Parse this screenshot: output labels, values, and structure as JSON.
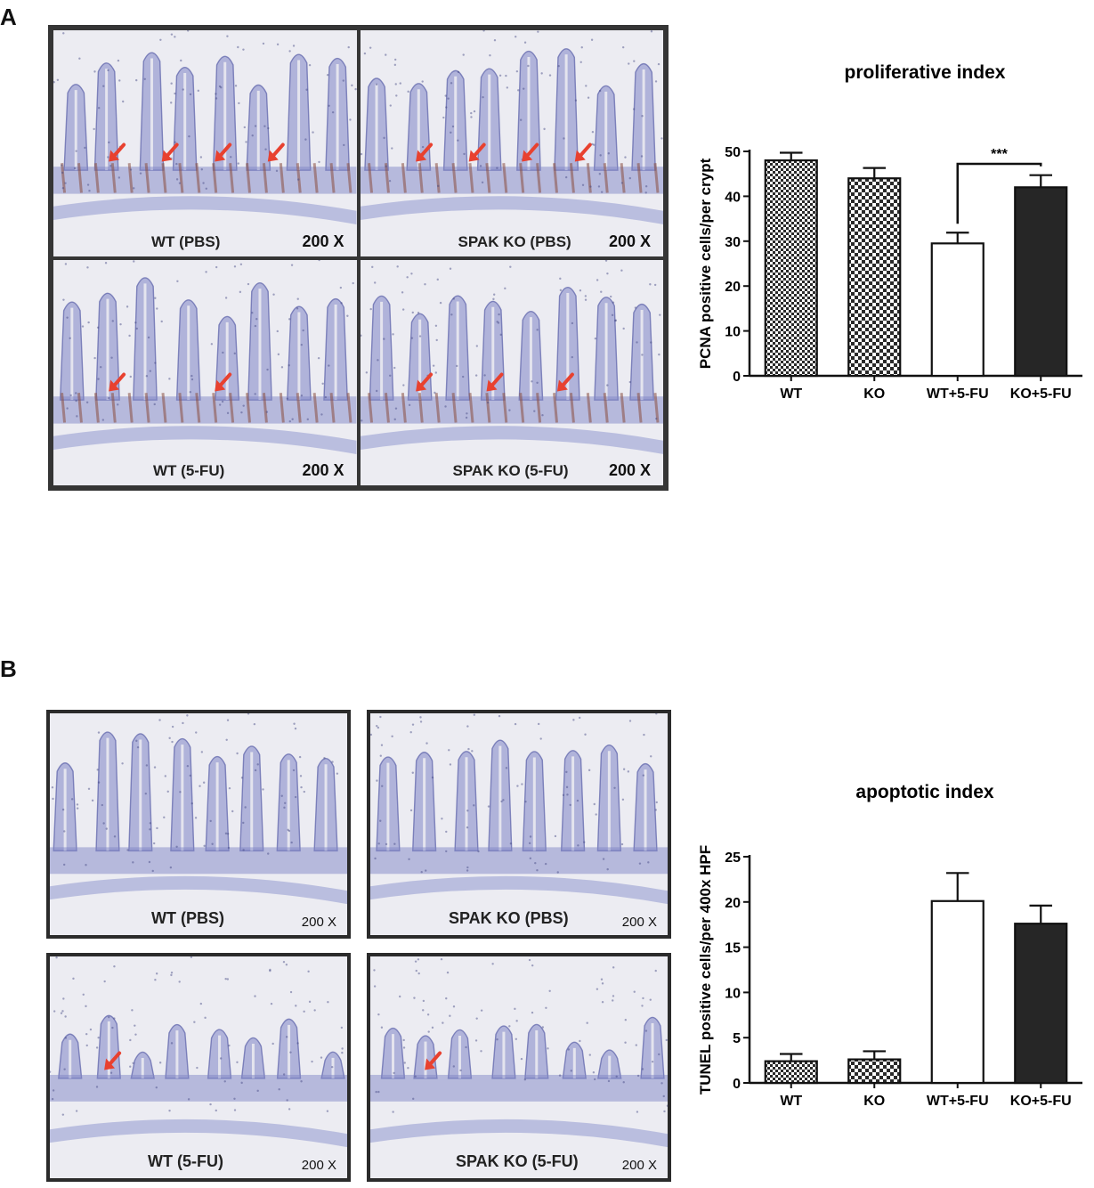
{
  "panels": [
    {
      "letter": "A",
      "images": [
        {
          "label": "WT (PBS)",
          "magnification": "200 X",
          "arrows": 4
        },
        {
          "label": "SPAK KO (PBS)",
          "magnification": "200 X",
          "arrows": 4
        },
        {
          "label": "WT (5-FU)",
          "magnification": "200 X",
          "arrows": 2
        },
        {
          "label": "SPAK KO (5-FU)",
          "magnification": "200 X",
          "arrows": 3
        }
      ]
    },
    {
      "letter": "B",
      "images": [
        {
          "label": "WT (PBS)",
          "magnification": "200 X",
          "arrows": 0
        },
        {
          "label": "SPAK KO (PBS)",
          "magnification": "200 X",
          "arrows": 0
        },
        {
          "label": "WT (5-FU)",
          "magnification": "200 X",
          "arrows": 1
        },
        {
          "label": "SPAK KO (5-FU)",
          "magnification": "200 X",
          "arrows": 1
        }
      ]
    }
  ],
  "chart_data": [
    {
      "type": "bar",
      "title": "proliferative index",
      "ylabel": "PCNA positive cells/per crypt",
      "xlabel": "",
      "categories": [
        "WT",
        "KO",
        "WT+5-FU",
        "KO+5-FU"
      ],
      "values": [
        48,
        44,
        29.5,
        42
      ],
      "errors": [
        1.7,
        2.3,
        2.4,
        2.7
      ],
      "ylim": [
        0,
        50
      ],
      "yticks": [
        0,
        10,
        20,
        30,
        40,
        50
      ],
      "fills": [
        "checker-fine",
        "checker-coarse",
        "white",
        "black"
      ],
      "significance": {
        "from": 2,
        "to": 3,
        "label": "***"
      }
    },
    {
      "type": "bar",
      "title": "apoptotic index",
      "ylabel": "TUNEL positive cells/per 400x HPF",
      "xlabel": "",
      "categories": [
        "WT",
        "KO",
        "WT+5-FU",
        "KO+5-FU"
      ],
      "values": [
        2.4,
        2.6,
        20.1,
        17.6
      ],
      "errors": [
        0.8,
        0.9,
        3.1,
        2.0
      ],
      "ylim": [
        0,
        25
      ],
      "yticks": [
        0,
        5,
        10,
        15,
        20,
        25
      ],
      "fills": [
        "checker-fine",
        "checker-coarse",
        "white",
        "black"
      ]
    }
  ],
  "colors": {
    "bar_black": "#262626",
    "arrow": "#e8412f",
    "tissue": "#7f85c6",
    "crypt_stain": "#8a4f3f"
  }
}
